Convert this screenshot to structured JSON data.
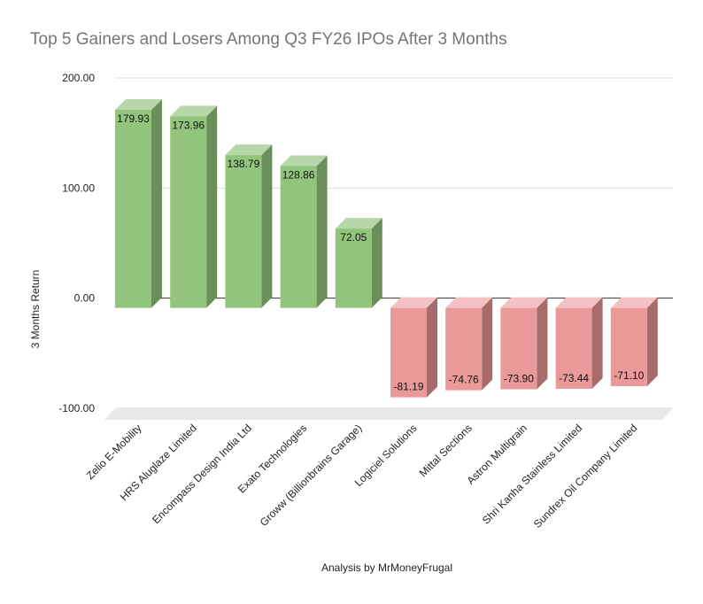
{
  "chart_data": {
    "type": "bar",
    "title": "Top 5 Gainers and Losers Among Q3 FY26 IPOs After 3 Months",
    "xlabel": "Analysis by MrMoneyFrugal",
    "ylabel": "3 Months Return",
    "ylim": [
      -100,
      200
    ],
    "yticks": [
      "200.00",
      "100.00",
      "0.00",
      "-100.00"
    ],
    "tick_values": [
      200,
      100,
      0,
      -100
    ],
    "grid": true,
    "style": "3d",
    "categories": [
      "Zelio E-Mobility",
      "HRS Aluglaze Limited",
      "Encompass Design India Ltd",
      "Exato Technologies",
      "Groww (Billionbrains Garage)",
      "Logiciel Solutions",
      "Mittal Sections",
      "Astron Multigrain",
      "Shri Kanha Stainless Limited",
      "Sundrex Oil Company Limited"
    ],
    "values": [
      179.93,
      173.96,
      138.79,
      128.86,
      72.05,
      -81.19,
      -74.76,
      -73.9,
      -73.44,
      -71.1
    ],
    "data_labels": [
      "179.93",
      "173.96",
      "138.79",
      "128.86",
      "72.05",
      "-81.19",
      "-74.76",
      "-73.90",
      "-73.44",
      "-71.10"
    ],
    "colors": {
      "positive_front": "#93c47d",
      "positive_top": "#b6d7a8",
      "positive_side": "#6a8f5a",
      "negative_front": "#ea9999",
      "negative_top": "#f4c2c2",
      "negative_side": "#a86b6b",
      "grid": "#d9d9d9",
      "floor": "#e8e8e8"
    }
  }
}
